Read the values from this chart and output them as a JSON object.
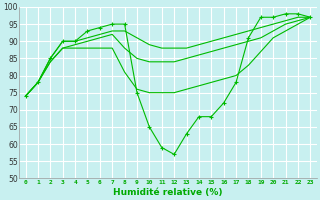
{
  "xlabel": "Humidité relative (%)",
  "background_color": "#c8f0f0",
  "grid_color": "#ffffff",
  "line_color": "#00bb00",
  "xlim": [
    -0.5,
    23.5
  ],
  "ylim": [
    50,
    100
  ],
  "yticks": [
    50,
    55,
    60,
    65,
    70,
    75,
    80,
    85,
    90,
    95,
    100
  ],
  "xticks": [
    0,
    1,
    2,
    3,
    4,
    5,
    6,
    7,
    8,
    9,
    10,
    11,
    12,
    13,
    14,
    15,
    16,
    17,
    18,
    19,
    20,
    21,
    22,
    23
  ],
  "series": [
    {
      "x": [
        0,
        1,
        2,
        3,
        4,
        5,
        6,
        7,
        8,
        9,
        10,
        11,
        12,
        13,
        14,
        15,
        16,
        17,
        18,
        19,
        20,
        21,
        22,
        23
      ],
      "y": [
        74,
        78,
        85,
        90,
        90,
        93,
        94,
        95,
        95,
        75,
        65,
        59,
        57,
        63,
        68,
        68,
        72,
        78,
        91,
        97,
        97,
        98,
        98,
        97
      ],
      "marker": "+"
    },
    {
      "x": [
        0,
        1,
        2,
        3,
        4,
        5,
        6,
        7,
        8,
        9,
        10,
        11,
        12,
        13,
        14,
        15,
        16,
        17,
        18,
        19,
        20,
        21,
        22,
        23
      ],
      "y": [
        74,
        78,
        85,
        90,
        90,
        91,
        92,
        93,
        93,
        91,
        89,
        88,
        88,
        88,
        89,
        90,
        91,
        92,
        93,
        94,
        95,
        96,
        97,
        97
      ],
      "marker": null
    },
    {
      "x": [
        0,
        1,
        2,
        3,
        4,
        5,
        6,
        7,
        8,
        9,
        10,
        11,
        12,
        13,
        14,
        15,
        16,
        17,
        18,
        19,
        20,
        21,
        22,
        23
      ],
      "y": [
        74,
        78,
        84,
        88,
        89,
        90,
        91,
        92,
        88,
        85,
        84,
        84,
        84,
        85,
        86,
        87,
        88,
        89,
        90,
        91,
        93,
        95,
        96,
        97
      ],
      "marker": null
    },
    {
      "x": [
        0,
        1,
        2,
        3,
        4,
        5,
        6,
        7,
        8,
        9,
        10,
        11,
        12,
        13,
        14,
        15,
        16,
        17,
        18,
        19,
        20,
        21,
        22,
        23
      ],
      "y": [
        74,
        78,
        84,
        88,
        88,
        88,
        88,
        88,
        81,
        76,
        75,
        75,
        75,
        76,
        77,
        78,
        79,
        80,
        83,
        87,
        91,
        93,
        95,
        97
      ],
      "marker": null
    }
  ]
}
